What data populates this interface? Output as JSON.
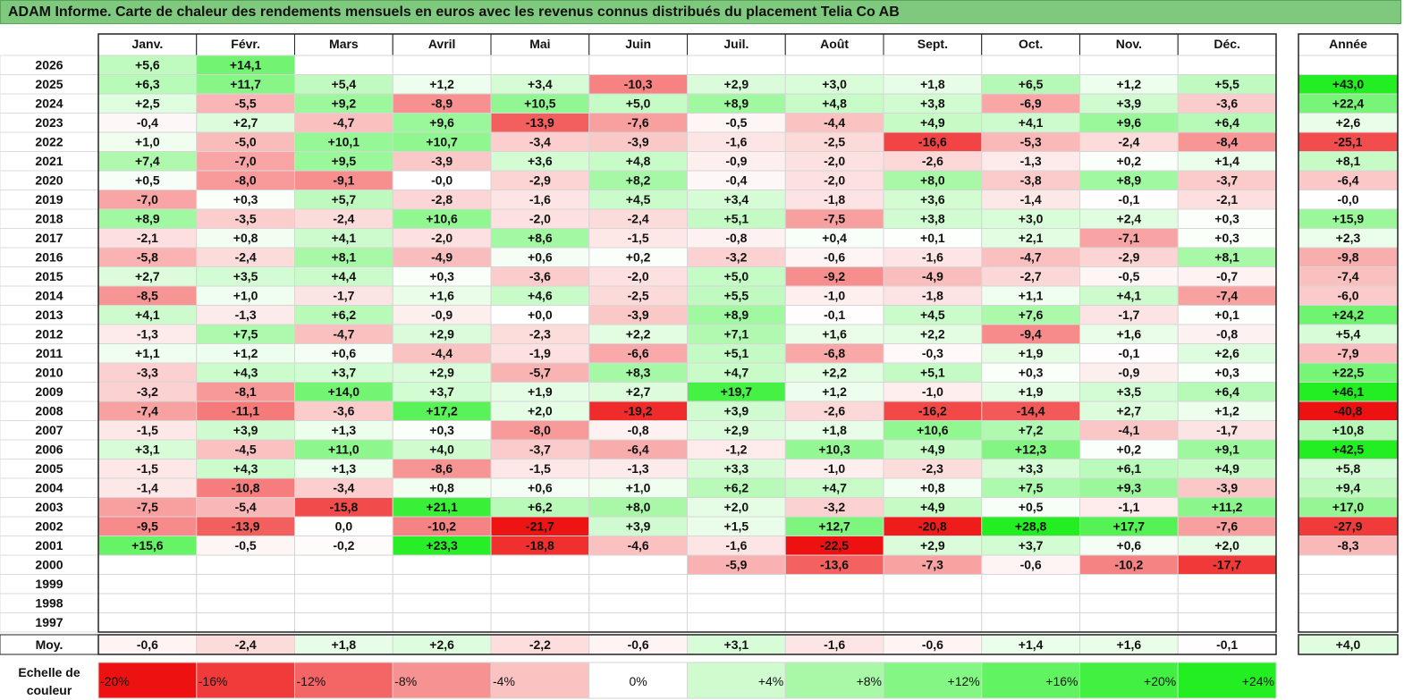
{
  "title": "ADAM Informe. Carte de chaleur des rendements mensuels en euros avec les revenus connus distribués du placement Telia Co AB",
  "chart_data": {
    "type": "heatmap",
    "months": [
      "Janv.",
      "Févr.",
      "Mars",
      "Avril",
      "Mai",
      "Juin",
      "Juil.",
      "Août",
      "Sept.",
      "Oct.",
      "Nov.",
      "Déc."
    ],
    "year_header": "Année",
    "rows": [
      {
        "year": "2026",
        "values": [
          "+5,6",
          "+14,1",
          null,
          null,
          null,
          null,
          null,
          null,
          null,
          null,
          null,
          null
        ],
        "annual": null
      },
      {
        "year": "2025",
        "values": [
          "+6,3",
          "+11,7",
          "+5,4",
          "+1,2",
          "+3,4",
          "-10,3",
          "+2,9",
          "+3,0",
          "+1,8",
          "+6,5",
          "+1,2",
          "+5,5"
        ],
        "annual": "+43,0"
      },
      {
        "year": "2024",
        "values": [
          "+2,5",
          "-5,5",
          "+9,2",
          "-8,9",
          "+10,5",
          "+5,0",
          "+8,9",
          "+4,8",
          "+3,8",
          "-6,9",
          "+3,9",
          "-3,6"
        ],
        "annual": "+22,4"
      },
      {
        "year": "2023",
        "values": [
          "-0,4",
          "+2,7",
          "-4,7",
          "+9,6",
          "-13,9",
          "-7,6",
          "-0,5",
          "-4,4",
          "+4,9",
          "+4,1",
          "+9,6",
          "+6,4"
        ],
        "annual": "+2,6"
      },
      {
        "year": "2022",
        "values": [
          "+1,0",
          "-5,0",
          "+10,1",
          "+10,7",
          "-3,4",
          "-3,9",
          "-1,6",
          "-2,5",
          "-16,6",
          "-5,3",
          "-2,4",
          "-8,4"
        ],
        "annual": "-25,1"
      },
      {
        "year": "2021",
        "values": [
          "+7,4",
          "-7,0",
          "+9,5",
          "-3,9",
          "+3,6",
          "+4,8",
          "-0,9",
          "-2,0",
          "-2,6",
          "-1,3",
          "+0,2",
          "+1,4"
        ],
        "annual": "+8,1"
      },
      {
        "year": "2020",
        "values": [
          "+0,5",
          "-8,0",
          "-9,1",
          "-0,0",
          "-2,9",
          "+8,2",
          "-0,4",
          "-2,0",
          "+8,0",
          "-3,8",
          "+8,9",
          "-3,7"
        ],
        "annual": "-6,4"
      },
      {
        "year": "2019",
        "values": [
          "-7,0",
          "+0,3",
          "+5,7",
          "-2,8",
          "-1,6",
          "+4,5",
          "+3,4",
          "-1,8",
          "+3,6",
          "-1,4",
          "-0,1",
          "-2,1"
        ],
        "annual": "-0,0"
      },
      {
        "year": "2018",
        "values": [
          "+8,9",
          "-3,5",
          "-2,4",
          "+10,6",
          "-2,0",
          "-2,4",
          "+5,1",
          "-7,5",
          "+3,8",
          "+3,0",
          "+2,4",
          "+0,3"
        ],
        "annual": "+15,9"
      },
      {
        "year": "2017",
        "values": [
          "-2,1",
          "+0,8",
          "+4,1",
          "-2,0",
          "+8,6",
          "-1,5",
          "-0,8",
          "+0,4",
          "+0,1",
          "+2,1",
          "-7,1",
          "+0,3"
        ],
        "annual": "+2,3"
      },
      {
        "year": "2016",
        "values": [
          "-5,8",
          "-2,4",
          "+8,1",
          "-4,9",
          "+0,6",
          "+0,2",
          "-3,2",
          "-0,6",
          "-1,6",
          "-4,7",
          "-2,9",
          "+8,1"
        ],
        "annual": "-9,8"
      },
      {
        "year": "2015",
        "values": [
          "+2,7",
          "+3,5",
          "+4,4",
          "+0,3",
          "-3,6",
          "-2,0",
          "+5,0",
          "-9,2",
          "-4,9",
          "-2,7",
          "-0,5",
          "-0,7"
        ],
        "annual": "-7,4"
      },
      {
        "year": "2014",
        "values": [
          "-8,5",
          "+1,0",
          "-1,7",
          "+1,6",
          "+4,6",
          "-2,5",
          "+5,5",
          "-1,0",
          "-1,8",
          "+1,1",
          "+4,1",
          "-7,4"
        ],
        "annual": "-6,0"
      },
      {
        "year": "2013",
        "values": [
          "+4,1",
          "-1,3",
          "+6,2",
          "-0,9",
          "+0,0",
          "-3,9",
          "+8,9",
          "-0,1",
          "+4,5",
          "+7,6",
          "-1,7",
          "+0,1"
        ],
        "annual": "+24,2"
      },
      {
        "year": "2012",
        "values": [
          "-1,3",
          "+7,5",
          "-4,7",
          "+2,9",
          "-2,3",
          "+2,2",
          "+7,1",
          "+1,6",
          "+2,2",
          "-9,4",
          "+1,6",
          "-0,8"
        ],
        "annual": "+5,4"
      },
      {
        "year": "2011",
        "values": [
          "+1,1",
          "+1,2",
          "+0,6",
          "-4,4",
          "-1,9",
          "-6,6",
          "+5,1",
          "-6,8",
          "-0,3",
          "+1,9",
          "-0,1",
          "+2,6"
        ],
        "annual": "-7,9"
      },
      {
        "year": "2010",
        "values": [
          "-3,3",
          "+4,3",
          "+3,7",
          "+2,9",
          "-5,7",
          "+8,3",
          "+4,7",
          "+2,2",
          "+5,1",
          "+0,3",
          "-0,9",
          "+0,3"
        ],
        "annual": "+22,5"
      },
      {
        "year": "2009",
        "values": [
          "-3,2",
          "-8,1",
          "+14,0",
          "+3,7",
          "+1,9",
          "+2,7",
          "+19,7",
          "+1,2",
          "-1,0",
          "+1,9",
          "+3,5",
          "+6,4"
        ],
        "annual": "+46,1"
      },
      {
        "year": "2008",
        "values": [
          "-7,4",
          "-11,1",
          "-3,6",
          "+17,2",
          "+2,0",
          "-19,2",
          "+3,9",
          "-2,6",
          "-16,2",
          "-14,4",
          "+2,7",
          "+1,2"
        ],
        "annual": "-40,8"
      },
      {
        "year": "2007",
        "values": [
          "-1,5",
          "+3,9",
          "+1,3",
          "+0,3",
          "-8,0",
          "-0,8",
          "+2,9",
          "+1,8",
          "+10,6",
          "+7,2",
          "-4,1",
          "-1,7"
        ],
        "annual": "+10,8"
      },
      {
        "year": "2006",
        "values": [
          "+3,1",
          "-4,5",
          "+11,0",
          "+4,0",
          "-3,7",
          "-6,4",
          "-1,2",
          "+10,3",
          "+4,9",
          "+12,3",
          "+0,2",
          "+9,1"
        ],
        "annual": "+42,5"
      },
      {
        "year": "2005",
        "values": [
          "-1,5",
          "+4,3",
          "+1,3",
          "-8,6",
          "-1,5",
          "-1,3",
          "+3,3",
          "-1,0",
          "-2,3",
          "+3,3",
          "+6,1",
          "+4,9"
        ],
        "annual": "+5,8"
      },
      {
        "year": "2004",
        "values": [
          "-1,4",
          "-10,8",
          "-3,4",
          "+0,8",
          "+0,6",
          "+1,0",
          "+6,2",
          "+4,7",
          "+0,8",
          "+7,5",
          "+9,3",
          "-3,9"
        ],
        "annual": "+9,4"
      },
      {
        "year": "2003",
        "values": [
          "-7,5",
          "-5,4",
          "-15,8",
          "+21,1",
          "+6,2",
          "+8,0",
          "+2,0",
          "-3,2",
          "+4,9",
          "+0,5",
          "-1,1",
          "+11,2"
        ],
        "annual": "+17,0"
      },
      {
        "year": "2002",
        "values": [
          "-9,5",
          "-13,9",
          "0,0",
          "-10,2",
          "-21,7",
          "+3,9",
          "+1,5",
          "+12,7",
          "-20,8",
          "+28,8",
          "+17,7",
          "-7,6"
        ],
        "annual": "-27,9"
      },
      {
        "year": "2001",
        "values": [
          "+15,6",
          "-0,5",
          "-0,2",
          "+23,3",
          "-18,8",
          "-4,6",
          "-1,6",
          "-22,5",
          "+2,9",
          "+3,7",
          "+0,6",
          "+2,0"
        ],
        "annual": "-8,3"
      },
      {
        "year": "2000",
        "values": [
          null,
          null,
          null,
          null,
          null,
          null,
          "-5,9",
          "-13,6",
          "-7,3",
          "-0,6",
          "-10,2",
          "-17,7"
        ],
        "annual": null
      },
      {
        "year": "1999",
        "values": [
          null,
          null,
          null,
          null,
          null,
          null,
          null,
          null,
          null,
          null,
          null,
          null
        ],
        "annual": null
      },
      {
        "year": "1998",
        "values": [
          null,
          null,
          null,
          null,
          null,
          null,
          null,
          null,
          null,
          null,
          null,
          null
        ],
        "annual": null
      },
      {
        "year": "1997",
        "values": [
          null,
          null,
          null,
          null,
          null,
          null,
          null,
          null,
          null,
          null,
          null,
          null
        ],
        "annual": null
      }
    ],
    "average": {
      "label": "Moy.",
      "values": [
        "-0,6",
        "-2,4",
        "+1,8",
        "+2,6",
        "-2,2",
        "-0,6",
        "+3,1",
        "-1,6",
        "-0,6",
        "+1,4",
        "+1,6",
        "-0,1"
      ],
      "annual": "+4,0"
    },
    "scale": {
      "label_line1": "Echelle de",
      "label_line2": "couleur",
      "steps": [
        {
          "label": "-20%",
          "value": -20
        },
        {
          "label": "-16%",
          "value": -16
        },
        {
          "label": "-12%",
          "value": -12
        },
        {
          "label": "-8%",
          "value": -8
        },
        {
          "label": "-4%",
          "value": -4
        },
        {
          "label": "0%",
          "value": 0
        },
        {
          "label": "+4%",
          "value": 4
        },
        {
          "label": "+8%",
          "value": 8
        },
        {
          "label": "+12%",
          "value": 12
        },
        {
          "label": "+16%",
          "value": 16
        },
        {
          "label": "+20%",
          "value": 20
        },
        {
          "label": "+24%",
          "value": 24
        }
      ]
    },
    "colors": {
      "negative_max": "#ee1111",
      "neutral": "#ffffff",
      "positive_max": "#22ee22",
      "title_bar": "#7fc97f"
    }
  }
}
